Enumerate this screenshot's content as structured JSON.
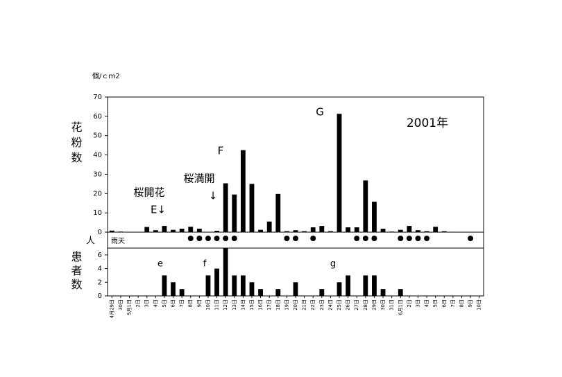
{
  "chart_data": [
    {
      "type": "bar",
      "unit_label": "個/ｃｍ2",
      "ylabel": "花粉数",
      "color": "#000000",
      "values": [
        0.8,
        0.3,
        0,
        0,
        2.7,
        1,
        3.2,
        1.2,
        1.8,
        2.8,
        1.8,
        0,
        0.7,
        25.3,
        19.5,
        42.5,
        25,
        1.2,
        5.5,
        19.8,
        0.5,
        1,
        0.5,
        2.5,
        3.2,
        0.5,
        61.3,
        2.5,
        2.5,
        26.8,
        15.8,
        1.8,
        0.3,
        1.2,
        3.2,
        1,
        0.5,
        2.8,
        0.5,
        0.2,
        0,
        0,
        0
      ],
      "ylim": [
        0,
        70
      ],
      "yticks": [
        0,
        10,
        20,
        30,
        40,
        50,
        60,
        70
      ],
      "annotations": [
        "桜開花",
        "E↓",
        "桜満開",
        "↓",
        "F",
        "G",
        "2001年"
      ],
      "rain": {
        "label": "雨天",
        "values": [
          null,
          null,
          null,
          null,
          null,
          null,
          null,
          null,
          null,
          1,
          1,
          1,
          1,
          1,
          1,
          null,
          null,
          null,
          null,
          null,
          1,
          1,
          null,
          1,
          null,
          null,
          null,
          null,
          1,
          1,
          1,
          null,
          null,
          1,
          1,
          1,
          1,
          null,
          null,
          null,
          null,
          1,
          null
        ]
      }
    },
    {
      "type": "bar",
      "unit_label": "人",
      "ylabel": "患者数",
      "color": "#000000",
      "categories": [
        "4月29日",
        "30日",
        "5月1日",
        "2日",
        "3日",
        "4日",
        "5日",
        "6日",
        "7日",
        "8日",
        "9日",
        "10日",
        "11日",
        "12日",
        "13日",
        "14日",
        "15日",
        "16日",
        "17日",
        "18日",
        "19日",
        "20日",
        "21日",
        "22日",
        "23日",
        "24日",
        "25日",
        "26日",
        "27日",
        "28日",
        "29日",
        "30日",
        "31日",
        "6月1日",
        "2日",
        "3日",
        "4日",
        "5日",
        "6日",
        "7日",
        "8日",
        "9日",
        "10日"
      ],
      "values": [
        0,
        0,
        0,
        0,
        0,
        0,
        3,
        2,
        1,
        0,
        0,
        3,
        4,
        7,
        3,
        3,
        2,
        1,
        0,
        1,
        0,
        2,
        0,
        0,
        1,
        0,
        2,
        3,
        0,
        3,
        3,
        1,
        0,
        1,
        0,
        0,
        0,
        0,
        0,
        0,
        0,
        0,
        0
      ],
      "ylim": [
        0,
        7
      ],
      "yticks": [
        0,
        2,
        4,
        6
      ],
      "annotations": [
        "e",
        "f",
        "g"
      ]
    }
  ]
}
